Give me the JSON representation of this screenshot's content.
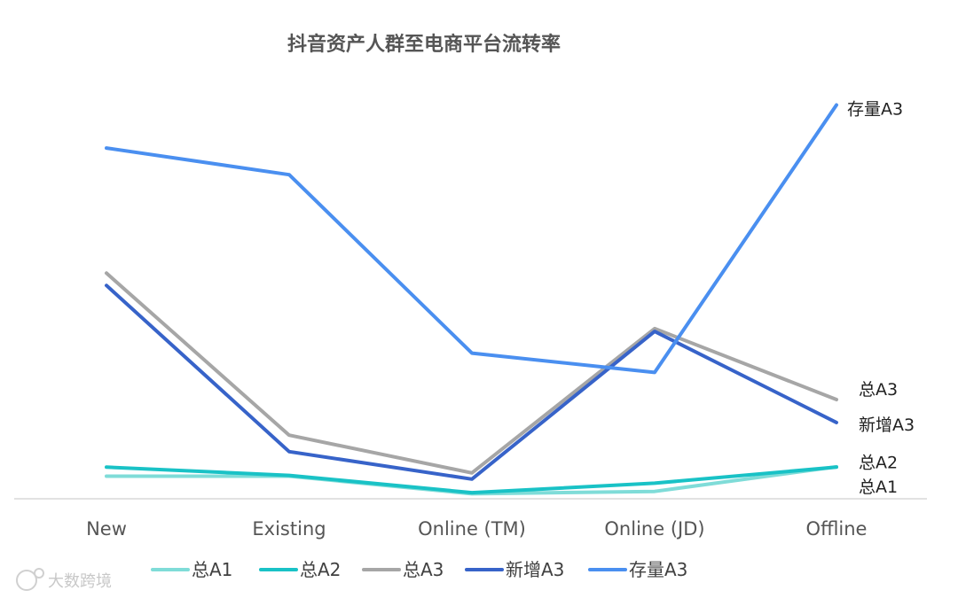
{
  "watermark": "大数跨境",
  "chart_data": {
    "type": "line",
    "title": "抖音资产人群至电商平台流转率",
    "xlabel": "",
    "ylabel": "",
    "categories": [
      "New",
      "Existing",
      "Online (TM)",
      "Online (JD)",
      "Offline"
    ],
    "ylim": [
      0,
      100
    ],
    "grid": false,
    "legend": "bottom",
    "series": [
      {
        "name": "总A1",
        "color": "#7fdcd8",
        "values": [
          5.5,
          5.5,
          1.2,
          1.8,
          7.8
        ],
        "end_label": "总A1"
      },
      {
        "name": "总A2",
        "color": "#19c2c6",
        "values": [
          7.7,
          5.7,
          1.5,
          3.8,
          7.7
        ],
        "end_label": "总A2"
      },
      {
        "name": "总A3",
        "color": "#a6a6a6",
        "values": [
          55.0,
          15.5,
          6.3,
          41.5,
          24.2
        ],
        "end_label": "总A3"
      },
      {
        "name": "新增A3",
        "color": "#3763c9",
        "values": [
          52.0,
          11.5,
          4.8,
          40.8,
          18.6
        ],
        "end_label": "新增A3"
      },
      {
        "name": "存量A3",
        "color": "#4a8ff0",
        "values": [
          85.5,
          79.0,
          35.5,
          30.8,
          96.0
        ],
        "end_label": "存量A3"
      }
    ]
  }
}
